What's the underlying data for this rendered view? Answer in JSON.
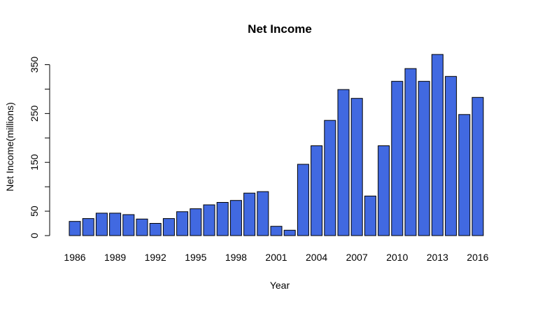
{
  "chart_data": {
    "type": "bar",
    "title": "Net Income",
    "xlabel": "Year",
    "ylabel": "Net Income(millions)",
    "categories": [
      "1986",
      "1987",
      "1988",
      "1989",
      "1990",
      "1991",
      "1992",
      "1993",
      "1994",
      "1995",
      "1996",
      "1997",
      "1998",
      "1999",
      "2000",
      "2001",
      "2002",
      "2003",
      "2004",
      "2005",
      "2006",
      "2007",
      "2008",
      "2009",
      "2010",
      "2011",
      "2012",
      "2013",
      "2014",
      "2015",
      "2016"
    ],
    "values": [
      29,
      35,
      46,
      46,
      43,
      34,
      25,
      35,
      49,
      55,
      63,
      68,
      72,
      87,
      90,
      19,
      11,
      146,
      184,
      236,
      299,
      281,
      81,
      184,
      316,
      342,
      316,
      371,
      326,
      248,
      283
    ],
    "x_tick_labels": [
      "1986",
      "1989",
      "1992",
      "1995",
      "1998",
      "2001",
      "2004",
      "2007",
      "2010",
      "2013",
      "2016"
    ],
    "y_ticks": [
      0,
      50,
      100,
      150,
      200,
      250,
      300,
      350
    ],
    "y_tick_labels": [
      "0",
      "50",
      "",
      "150",
      "",
      "250",
      "",
      "350"
    ],
    "ylim": [
      0,
      371
    ],
    "bar_color": "#4169e1",
    "grid": false,
    "legend": "none"
  }
}
